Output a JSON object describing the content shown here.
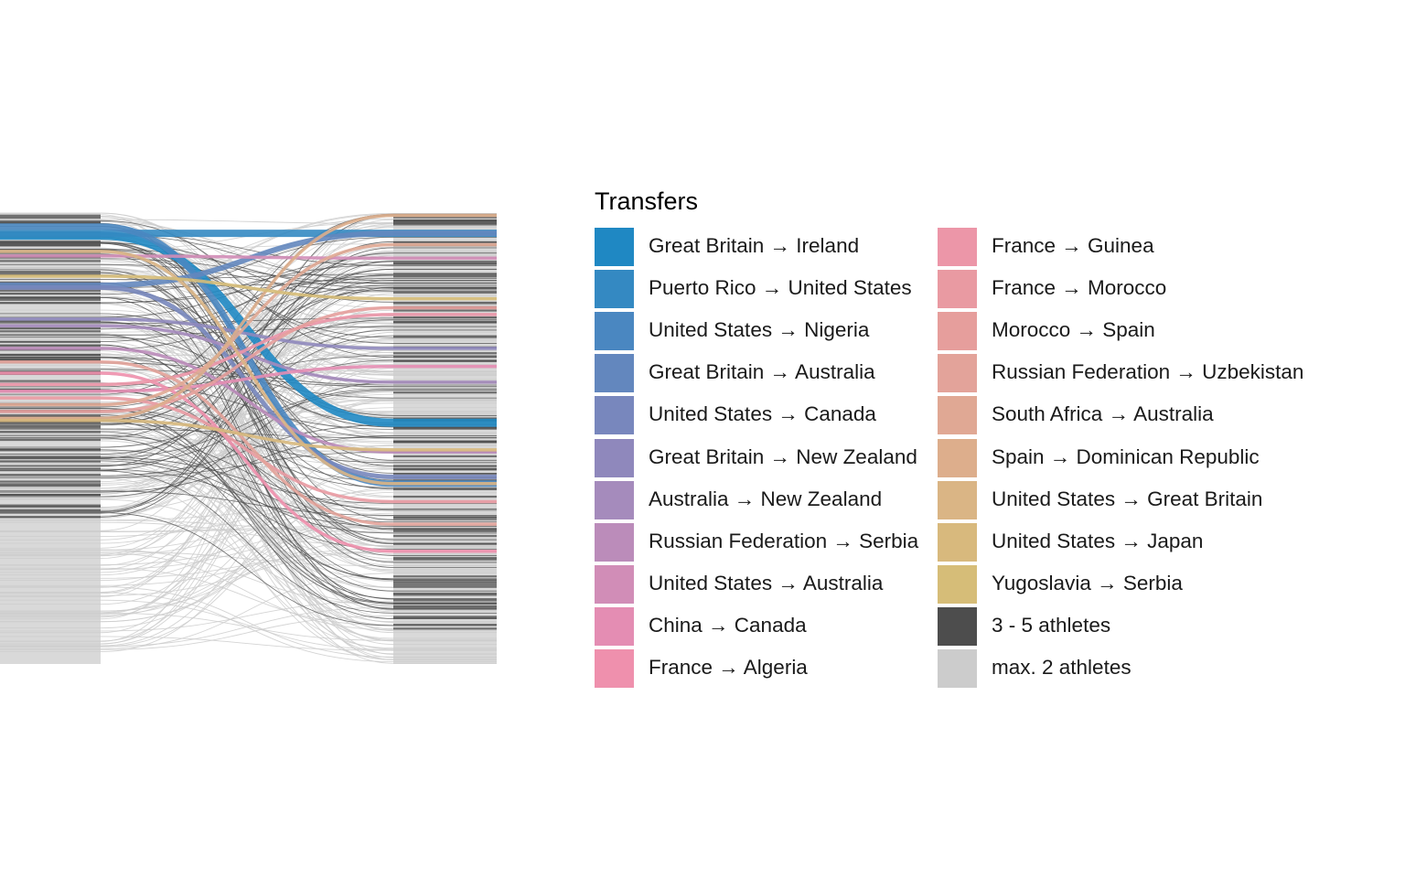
{
  "chart_data": {
    "type": "alluvial",
    "legend": {
      "title": "Transfers",
      "placement": "right",
      "entries": [
        {
          "label": "Great Britain → Ireland",
          "color": "#1f88c3"
        },
        {
          "label": "Puerto Rico → United States",
          "color": "#3489c2"
        },
        {
          "label": "United States → Nigeria",
          "color": "#4a87c1"
        },
        {
          "label": "Great Britain → Australia",
          "color": "#6387be"
        },
        {
          "label": "United States → Canada",
          "color": "#7887bd"
        },
        {
          "label": "Great Britain → New Zealand",
          "color": "#8f88bc"
        },
        {
          "label": "Australia → New Zealand",
          "color": "#a58bbc"
        },
        {
          "label": "Russian Federation → Serbia",
          "color": "#bb8cba"
        },
        {
          "label": "United States → Australia",
          "color": "#d18db7"
        },
        {
          "label": "China → Canada",
          "color": "#e48db3"
        },
        {
          "label": "France → Algeria",
          "color": "#ef90ad"
        },
        {
          "label": "France → Guinea",
          "color": "#ec96a8"
        },
        {
          "label": "France → Morocco",
          "color": "#e99aa2"
        },
        {
          "label": "Morocco → Spain",
          "color": "#e69e9c"
        },
        {
          "label": "Russian Federation → Uzbekistan",
          "color": "#e3a39a"
        },
        {
          "label": "South Africa → Australia",
          "color": "#e0a894"
        },
        {
          "label": "Spain → Dominican Republic",
          "color": "#ddae8c"
        },
        {
          "label": "United States → Great Britain",
          "color": "#dab585"
        },
        {
          "label": "United States → Japan",
          "color": "#d8b97d"
        },
        {
          "label": "Yugoslavia → Serbia",
          "color": "#d6bd78"
        },
        {
          "label": "3 - 5 athletes",
          "color": "#4d4d4d"
        },
        {
          "label": "max. 2 athletes",
          "color": "#cccccc"
        }
      ]
    },
    "axes": {
      "visible": false
    },
    "grid": false,
    "background": "#ffffff",
    "strata_color": "#d9d9d9",
    "flows": [
      {
        "transfer": "Great Britain → Ireland",
        "from": 0.05,
        "to": 0.465
      },
      {
        "transfer": "Puerto Rico → United States",
        "from": 0.045,
        "to": 0.045
      },
      {
        "transfer": "United States → Nigeria",
        "from": 0.03,
        "to": 0.6
      },
      {
        "transfer": "Great Britain → Australia",
        "from": 0.16,
        "to": 0.045
      },
      {
        "transfer": "United States → Canada",
        "from": 0.165,
        "to": 0.585
      },
      {
        "transfer": "Great Britain → New Zealand",
        "from": 0.235,
        "to": 0.3
      },
      {
        "transfer": "Australia → New Zealand",
        "from": 0.25,
        "to": 0.375
      },
      {
        "transfer": "Russian Federation → Serbia",
        "from": 0.3,
        "to": 0.53
      },
      {
        "transfer": "United States → Australia",
        "from": 0.095,
        "to": 0.1
      },
      {
        "transfer": "China → Canada",
        "from": 0.395,
        "to": 0.34
      },
      {
        "transfer": "France → Algeria",
        "from": 0.355,
        "to": 0.75
      },
      {
        "transfer": "France → Guinea",
        "from": 0.38,
        "to": 0.225
      },
      {
        "transfer": "France → Morocco",
        "from": 0.41,
        "to": 0.64
      },
      {
        "transfer": "Morocco → Spain",
        "from": 0.44,
        "to": 0.21
      },
      {
        "transfer": "Russian Federation → Uzbekistan",
        "from": 0.33,
        "to": 0.69
      },
      {
        "transfer": "South Africa → Australia",
        "from": 0.425,
        "to": 0.07
      },
      {
        "transfer": "Spain → Dominican Republic",
        "from": 0.455,
        "to": 0.005
      },
      {
        "transfer": "United States → Great Britain",
        "from": 0.085,
        "to": 0.6
      },
      {
        "transfer": "United States → Japan",
        "from": 0.46,
        "to": 0.525
      },
      {
        "transfer": "Yugoslavia → Serbia",
        "from": 0.14,
        "to": 0.19
      }
    ]
  }
}
